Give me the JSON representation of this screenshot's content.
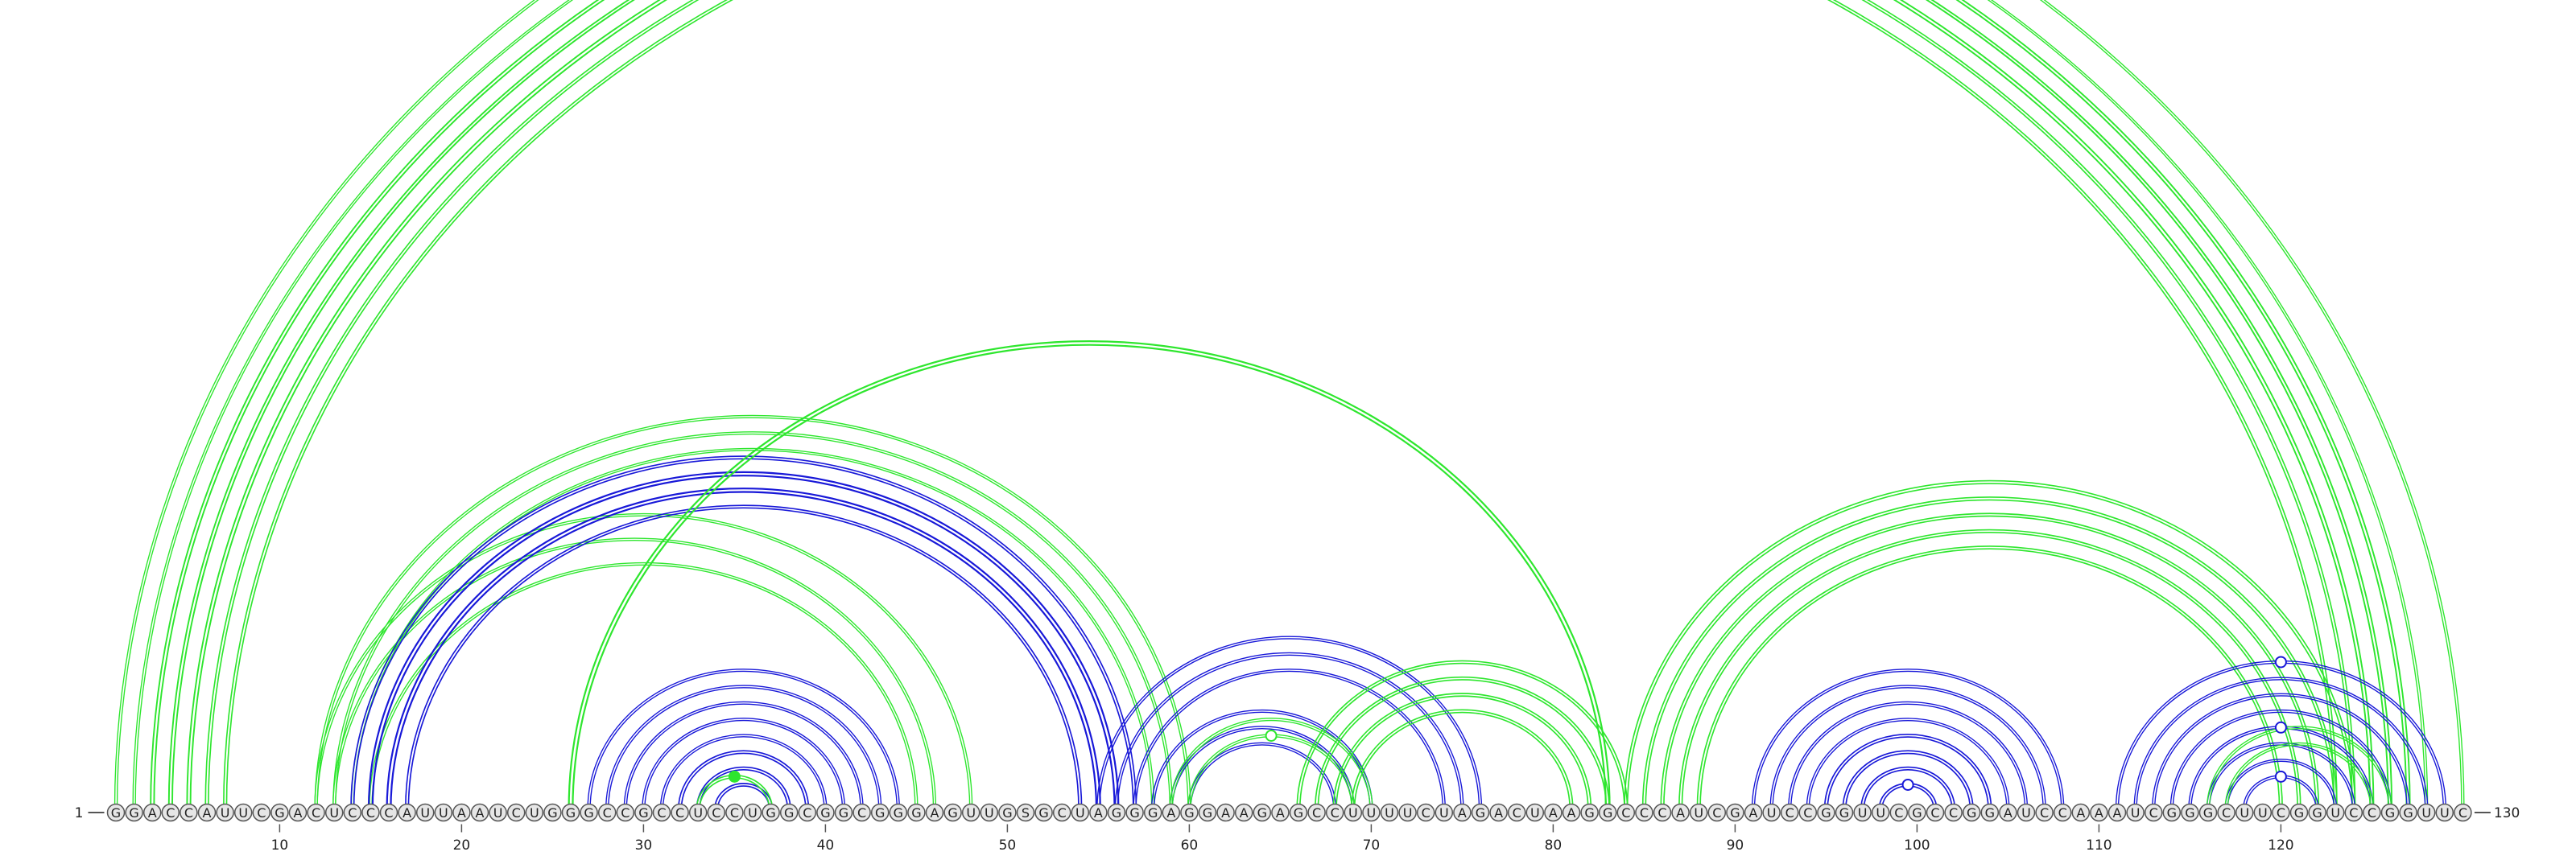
{
  "sequence": {
    "start_label": "1",
    "end_label": "130",
    "bases": [
      "G",
      "G",
      "A",
      "C",
      "C",
      "A",
      "U",
      "U",
      "C",
      "G",
      "A",
      "C",
      "U",
      "C",
      "C",
      "C",
      "A",
      "U",
      "U",
      "A",
      "A",
      "U",
      "C",
      "U",
      "G",
      "G",
      "G",
      "C",
      "C",
      "G",
      "C",
      "C",
      "U",
      "C",
      "C",
      "U",
      "G",
      "G",
      "C",
      "G",
      "G",
      "C",
      "G",
      "G",
      "G",
      "A",
      "G",
      "U",
      "U",
      "G",
      "S",
      "G",
      "C",
      "U",
      "A",
      "G",
      "G",
      "G",
      "A",
      "G",
      "G",
      "A",
      "A",
      "G",
      "A",
      "G",
      "C",
      "C",
      "U",
      "U",
      "U",
      "U",
      "C",
      "U",
      "A",
      "G",
      "A",
      "C",
      "U",
      "A",
      "A",
      "G",
      "G",
      "C",
      "C",
      "C",
      "A",
      "U",
      "C",
      "G",
      "A",
      "U",
      "C",
      "C",
      "G",
      "G",
      "U",
      "U",
      "C",
      "G",
      "C",
      "C",
      "G",
      "G",
      "A",
      "U",
      "C",
      "C",
      "A",
      "A",
      "A",
      "U",
      "C",
      "G",
      "G",
      "G",
      "C",
      "U",
      "U",
      "C",
      "G",
      "G",
      "U",
      "C",
      "C",
      "G",
      "G",
      "U",
      "U",
      "C"
    ]
  },
  "axis": {
    "ticks": [
      10,
      20,
      30,
      40,
      50,
      60,
      70,
      80,
      90,
      100,
      110,
      120
    ],
    "tick_labels": [
      "10",
      "20",
      "30",
      "40",
      "50",
      "60",
      "70",
      "80",
      "90",
      "100",
      "110",
      "120"
    ]
  },
  "colors": {
    "green": "#2ee62e",
    "blue": "#1818d8",
    "baseline": "#555555",
    "nucleotide_fill": "#e6e6e6",
    "nucleotide_stroke": "#555555",
    "text": "#222222"
  },
  "arcs": [
    {
      "color": "green",
      "i": 1,
      "j": 130,
      "width": 2.5
    },
    {
      "color": "green",
      "i": 2,
      "j": 128,
      "width": 2.5
    },
    {
      "color": "green",
      "i": 3,
      "j": 127,
      "width": 3.5
    },
    {
      "color": "green",
      "i": 4,
      "j": 126,
      "width": 3.5
    },
    {
      "color": "green",
      "i": 5,
      "j": 125,
      "width": 3.5
    },
    {
      "color": "green",
      "i": 6,
      "j": 124,
      "width": 3
    },
    {
      "color": "green",
      "i": 7,
      "j": 123,
      "width": 3
    },
    {
      "color": "green",
      "i": 12,
      "j": 60,
      "width": 2.5
    },
    {
      "color": "green",
      "i": 13,
      "j": 59,
      "width": 2.5
    },
    {
      "color": "green",
      "i": 14,
      "j": 58,
      "width": 2.5
    },
    {
      "color": "green",
      "i": 12,
      "j": 48,
      "width": 2.5
    },
    {
      "color": "green",
      "i": 13,
      "j": 46,
      "width": 2.5
    },
    {
      "color": "green",
      "i": 15,
      "j": 45,
      "width": 2.5
    },
    {
      "color": "blue",
      "i": 14,
      "j": 57,
      "width": 3
    },
    {
      "color": "blue",
      "i": 15,
      "j": 56,
      "width": 4
    },
    {
      "color": "blue",
      "i": 16,
      "j": 55,
      "width": 4
    },
    {
      "color": "blue",
      "i": 17,
      "j": 54,
      "width": 3
    },
    {
      "color": "green",
      "i": 26,
      "j": 83,
      "width": 4
    },
    {
      "color": "blue",
      "i": 27,
      "j": 44,
      "width": 2.5
    },
    {
      "color": "blue",
      "i": 28,
      "j": 43,
      "width": 2.5
    },
    {
      "color": "blue",
      "i": 29,
      "j": 42,
      "width": 2.5
    },
    {
      "color": "blue",
      "i": 30,
      "j": 41,
      "width": 2.5
    },
    {
      "color": "blue",
      "i": 31,
      "j": 40,
      "width": 2.5
    },
    {
      "color": "blue",
      "i": 32,
      "j": 39,
      "width": 3
    },
    {
      "color": "blue",
      "i": 33,
      "j": 38,
      "width": 3
    },
    {
      "color": "blue",
      "i": 34,
      "j": 37,
      "width": 3
    },
    {
      "color": "green",
      "i": 33,
      "j": 37,
      "width": 3
    },
    {
      "color": "blue",
      "i": 55,
      "j": 76,
      "width": 2.5
    },
    {
      "color": "blue",
      "i": 56,
      "j": 75,
      "width": 2.5
    },
    {
      "color": "blue",
      "i": 57,
      "j": 74,
      "width": 2.5
    },
    {
      "color": "blue",
      "i": 58,
      "j": 70,
      "width": 2.5
    },
    {
      "color": "blue",
      "i": 59,
      "j": 69,
      "width": 2.5
    },
    {
      "color": "blue",
      "i": 60,
      "j": 68,
      "width": 2.5
    },
    {
      "color": "green",
      "i": 59,
      "j": 70,
      "width": 2.5
    },
    {
      "color": "green",
      "i": 60,
      "j": 69,
      "width": 2.5
    },
    {
      "color": "green",
      "i": 66,
      "j": 84,
      "width": 3
    },
    {
      "color": "green",
      "i": 67,
      "j": 83,
      "width": 3
    },
    {
      "color": "green",
      "i": 68,
      "j": 82,
      "width": 3
    },
    {
      "color": "green",
      "i": 69,
      "j": 81,
      "width": 3
    },
    {
      "color": "green",
      "i": 84,
      "j": 124,
      "width": 3
    },
    {
      "color": "green",
      "i": 85,
      "j": 123,
      "width": 3
    },
    {
      "color": "green",
      "i": 86,
      "j": 122,
      "width": 3
    },
    {
      "color": "green",
      "i": 87,
      "j": 121,
      "width": 3
    },
    {
      "color": "green",
      "i": 88,
      "j": 120,
      "width": 3
    },
    {
      "color": "blue",
      "i": 91,
      "j": 108,
      "width": 2.5
    },
    {
      "color": "blue",
      "i": 92,
      "j": 107,
      "width": 2.5
    },
    {
      "color": "blue",
      "i": 93,
      "j": 106,
      "width": 2.5
    },
    {
      "color": "blue",
      "i": 94,
      "j": 105,
      "width": 2.5
    },
    {
      "color": "blue",
      "i": 95,
      "j": 104,
      "width": 3
    },
    {
      "color": "blue",
      "i": 96,
      "j": 103,
      "width": 3
    },
    {
      "color": "blue",
      "i": 97,
      "j": 102,
      "width": 3
    },
    {
      "color": "blue",
      "i": 98,
      "j": 101,
      "width": 3
    },
    {
      "color": "blue",
      "i": 111,
      "j": 129,
      "width": 2.5
    },
    {
      "color": "blue",
      "i": 112,
      "j": 128,
      "width": 2.5
    },
    {
      "color": "blue",
      "i": 113,
      "j": 127,
      "width": 2.5
    },
    {
      "color": "blue",
      "i": 114,
      "j": 126,
      "width": 2.5
    },
    {
      "color": "blue",
      "i": 115,
      "j": 125,
      "width": 2.5
    },
    {
      "color": "blue",
      "i": 116,
      "j": 124,
      "width": 2.5
    },
    {
      "color": "blue",
      "i": 117,
      "j": 123,
      "width": 2.5
    },
    {
      "color": "blue",
      "i": 118,
      "j": 122,
      "width": 2.5
    },
    {
      "color": "green",
      "i": 116,
      "j": 126,
      "width": 2.5
    },
    {
      "color": "green",
      "i": 117,
      "j": 125,
      "width": 2.5
    }
  ],
  "markers": [
    {
      "color": "green",
      "i": 1,
      "j": 130,
      "filled": false
    },
    {
      "color": "green",
      "i": 33,
      "j": 37,
      "filled": true
    },
    {
      "color": "green",
      "i": 60,
      "j": 69,
      "filled": false
    },
    {
      "color": "blue",
      "i": 98,
      "j": 101,
      "filled": false
    },
    {
      "color": "blue",
      "i": 111,
      "j": 129,
      "filled": false
    },
    {
      "color": "blue",
      "i": 115,
      "j": 125,
      "filled": false
    },
    {
      "color": "blue",
      "i": 118,
      "j": 122,
      "filled": false
    }
  ]
}
